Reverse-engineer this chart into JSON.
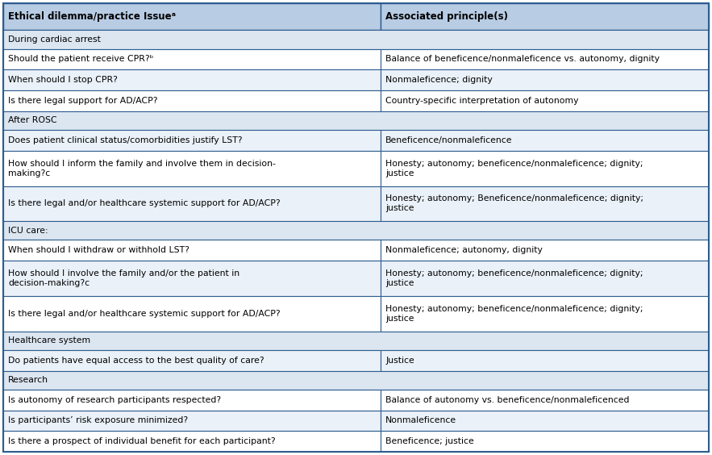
{
  "header": [
    "Ethical dilemma/practice Issueᵃ",
    "Associated principle(s)"
  ],
  "rows": [
    {
      "type": "section",
      "col1": "During cardiac arrest",
      "col2": ""
    },
    {
      "type": "data",
      "col1": "Should the patient receive CPR?ᵇ",
      "col2": "Balance of beneficence/nonmaleficence vs. autonomy, dignity"
    },
    {
      "type": "data",
      "col1": "When should I stop CPR?",
      "col2": "Nonmaleficence; dignity"
    },
    {
      "type": "data",
      "col1": "Is there legal support for AD/ACP?",
      "col2": "Country-specific interpretation of autonomy"
    },
    {
      "type": "section",
      "col1": "After ROSC",
      "col2": ""
    },
    {
      "type": "data",
      "col1": "Does patient clinical status/comorbidities justify LST?",
      "col2": "Beneficence/nonmaleficence"
    },
    {
      "type": "data",
      "col1": "How should I inform the family and involve them in decision-\nmaking?c",
      "col2": "Honesty; autonomy; beneficence/nonmaleficence; dignity;\njustice"
    },
    {
      "type": "data",
      "col1": "Is there legal and/or healthcare systemic support for AD/ACP?",
      "col2": "Honesty; autonomy; Beneficence/nonmaleficence; dignity;\njustice"
    },
    {
      "type": "section",
      "col1": "ICU care:",
      "col2": ""
    },
    {
      "type": "data",
      "col1": "When should I withdraw or withhold LST?",
      "col2": "Nonmaleficence; autonomy, dignity"
    },
    {
      "type": "data",
      "col1": "How should I involve the family and/or the patient in\ndecision-making?c",
      "col2": "Honesty; autonomy; beneficence/nonmaleficence; dignity;\njustice"
    },
    {
      "type": "data",
      "col1": "Is there legal and/or healthcare systemic support for AD/ACP?",
      "col2": "Honesty; autonomy; beneficence/nonmaleficence; dignity;\njustice"
    },
    {
      "type": "section",
      "col1": "Healthcare system",
      "col2": ""
    },
    {
      "type": "data",
      "col1": "Do patients have equal access to the best quality of care?",
      "col2": "Justice"
    },
    {
      "type": "section",
      "col1": "Research",
      "col2": ""
    },
    {
      "type": "data",
      "col1": "Is autonomy of research participants respected?",
      "col2": "Balance of autonomy vs. beneficence/nonmaleficenced"
    },
    {
      "type": "data",
      "col1": "Is participants’ risk exposure minimized?",
      "col2": "Nonmaleficence"
    },
    {
      "type": "data",
      "col1": "Is there a prospect of individual benefit for each participant?",
      "col2": "Beneficence; justice"
    }
  ],
  "col_split": 0.535,
  "header_bg": "#b8cce4",
  "section_bg": "#dce6f1",
  "data_bg_white": "#ffffff",
  "data_bg_light": "#eaf1f8",
  "border_color": "#2e5d8e",
  "text_color": "#000000",
  "header_fontsize": 8.5,
  "body_fontsize": 7.8,
  "fig_width": 8.83,
  "fig_height": 5.64,
  "dpi": 100,
  "row_heights": {
    "header": 26,
    "section": 18,
    "single": 20,
    "double": 34
  }
}
